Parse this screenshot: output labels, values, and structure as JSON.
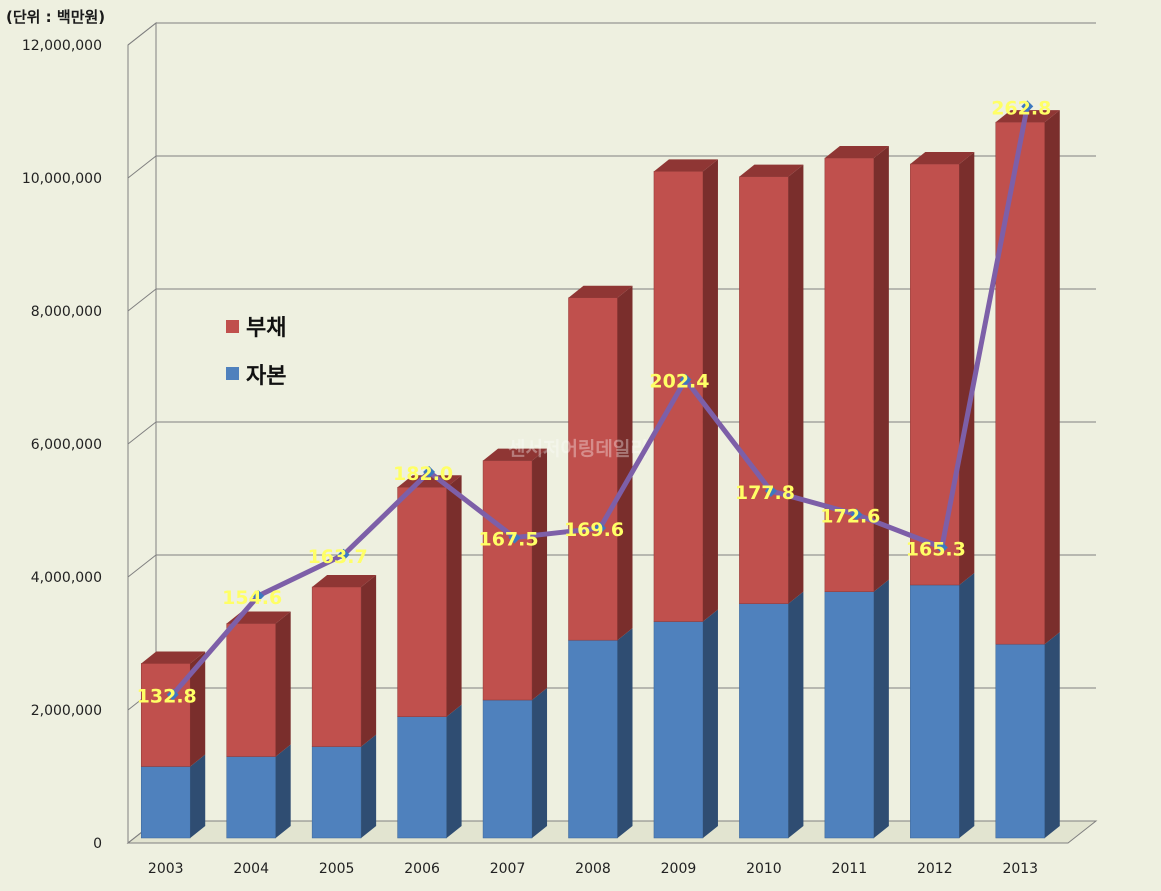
{
  "unit_label": "(단위 : 백만원)",
  "watermark": "센서저어링데일리",
  "colors": {
    "background": "#eef0e0",
    "debt_front": "#c0504d",
    "debt_side": "#7a2e2c",
    "debt_top": "#8f3634",
    "equity_front": "#4f81bd",
    "equity_side": "#2f4d72",
    "equity_top": "#385d8a",
    "line": "#7d5fa8",
    "label": "#ffff66",
    "grid": "#808080"
  },
  "chart_data": {
    "type": "bar",
    "stacked": true,
    "three_d": true,
    "categories": [
      "2003",
      "2004",
      "2005",
      "2006",
      "2007",
      "2008",
      "2009",
      "2010",
      "2011",
      "2012",
      "2013"
    ],
    "ylim": [
      0,
      12000000
    ],
    "yticks": [
      {
        "value": 0,
        "label": "0"
      },
      {
        "value": 2000000,
        "label": "2,000,000"
      },
      {
        "value": 4000000,
        "label": "4,000,000"
      },
      {
        "value": 6000000,
        "label": "6,000,000"
      },
      {
        "value": 8000000,
        "label": "8,000,000"
      },
      {
        "value": 10000000,
        "label": "10,000,000"
      },
      {
        "value": 12000000,
        "label": "12,000,000"
      }
    ],
    "grid": true,
    "legend_position": "left",
    "series": [
      {
        "name": "자본",
        "key": "equity",
        "values": [
          1150000,
          1300000,
          1450000,
          1900000,
          2150000,
          3050000,
          3330000,
          3600000,
          3780000,
          3880000,
          2990000
        ]
      },
      {
        "name": "부채",
        "key": "debt",
        "values": [
          1550000,
          2000000,
          2400000,
          3450000,
          3600000,
          5150000,
          6770000,
          6420000,
          6520000,
          6330000,
          7850000
        ]
      }
    ],
    "line": {
      "values": [
        132.8,
        154.6,
        163.7,
        182.0,
        167.5,
        169.6,
        202.4,
        177.8,
        172.6,
        165.3,
        262.8
      ],
      "labels": [
        "132.8",
        "154.6",
        "163.7",
        "182.0",
        "167.5",
        "169.6",
        "202.4",
        "177.8",
        "172.6",
        "165.3",
        "262.8"
      ]
    }
  }
}
